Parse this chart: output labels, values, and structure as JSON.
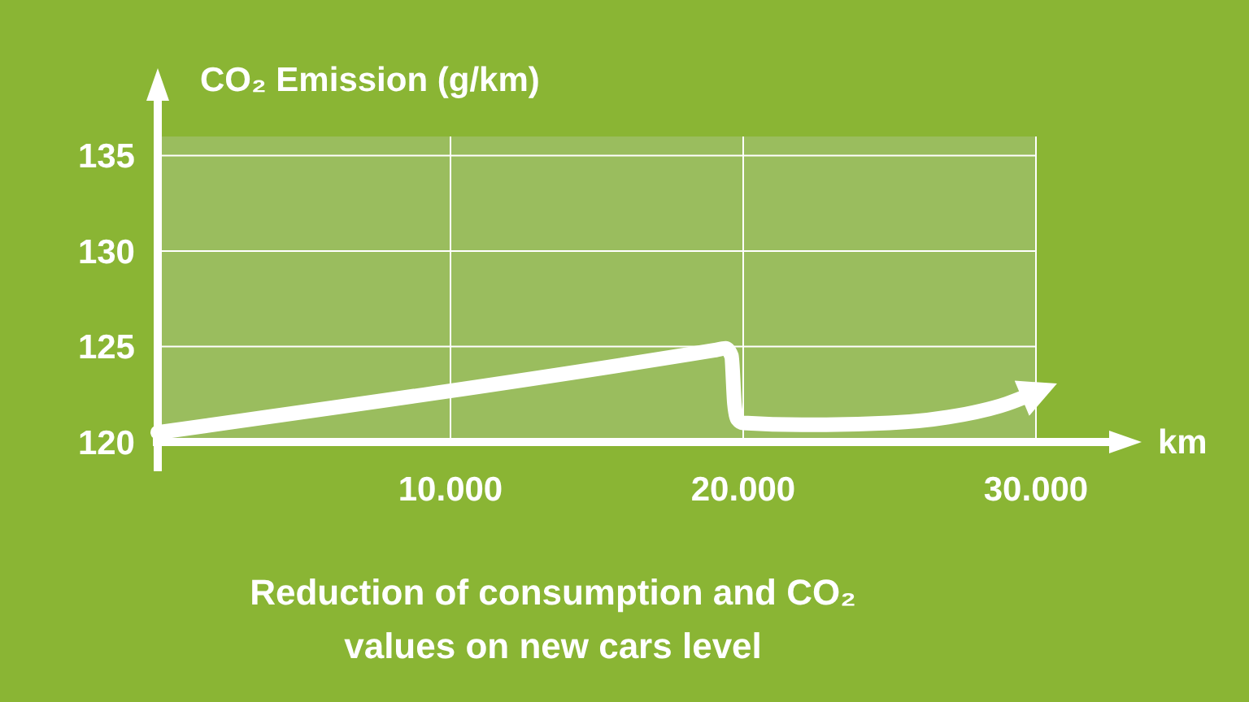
{
  "chart_data": {
    "type": "line",
    "ylabel": "CO₂ Emission (g/km)",
    "xlabel": "km",
    "annotations": [
      "Reduction of consumption and CO₂ values on new cars level"
    ],
    "x": [
      0,
      19000,
      19400,
      19600,
      19700,
      19800,
      20000,
      22000,
      25000,
      27000,
      29000,
      30000
    ],
    "series": [
      {
        "color": "#ffffff",
        "values": [
          120.5,
          124.8,
          124.9,
          124.5,
          122,
          121.2,
          121,
          120.9,
          121,
          121.3,
          122,
          122.6
        ]
      }
    ],
    "xlim": [
      0,
      30000
    ],
    "ylim": [
      120,
      136
    ],
    "xticks": [
      {
        "value": 10000,
        "label": "10.000"
      },
      {
        "value": 20000,
        "label": "20.000"
      },
      {
        "value": 30000,
        "label": "30.000"
      }
    ],
    "yticks": [
      120,
      125,
      130,
      135
    ],
    "grid": true,
    "marker": "none",
    "line_style": "solid"
  }
}
